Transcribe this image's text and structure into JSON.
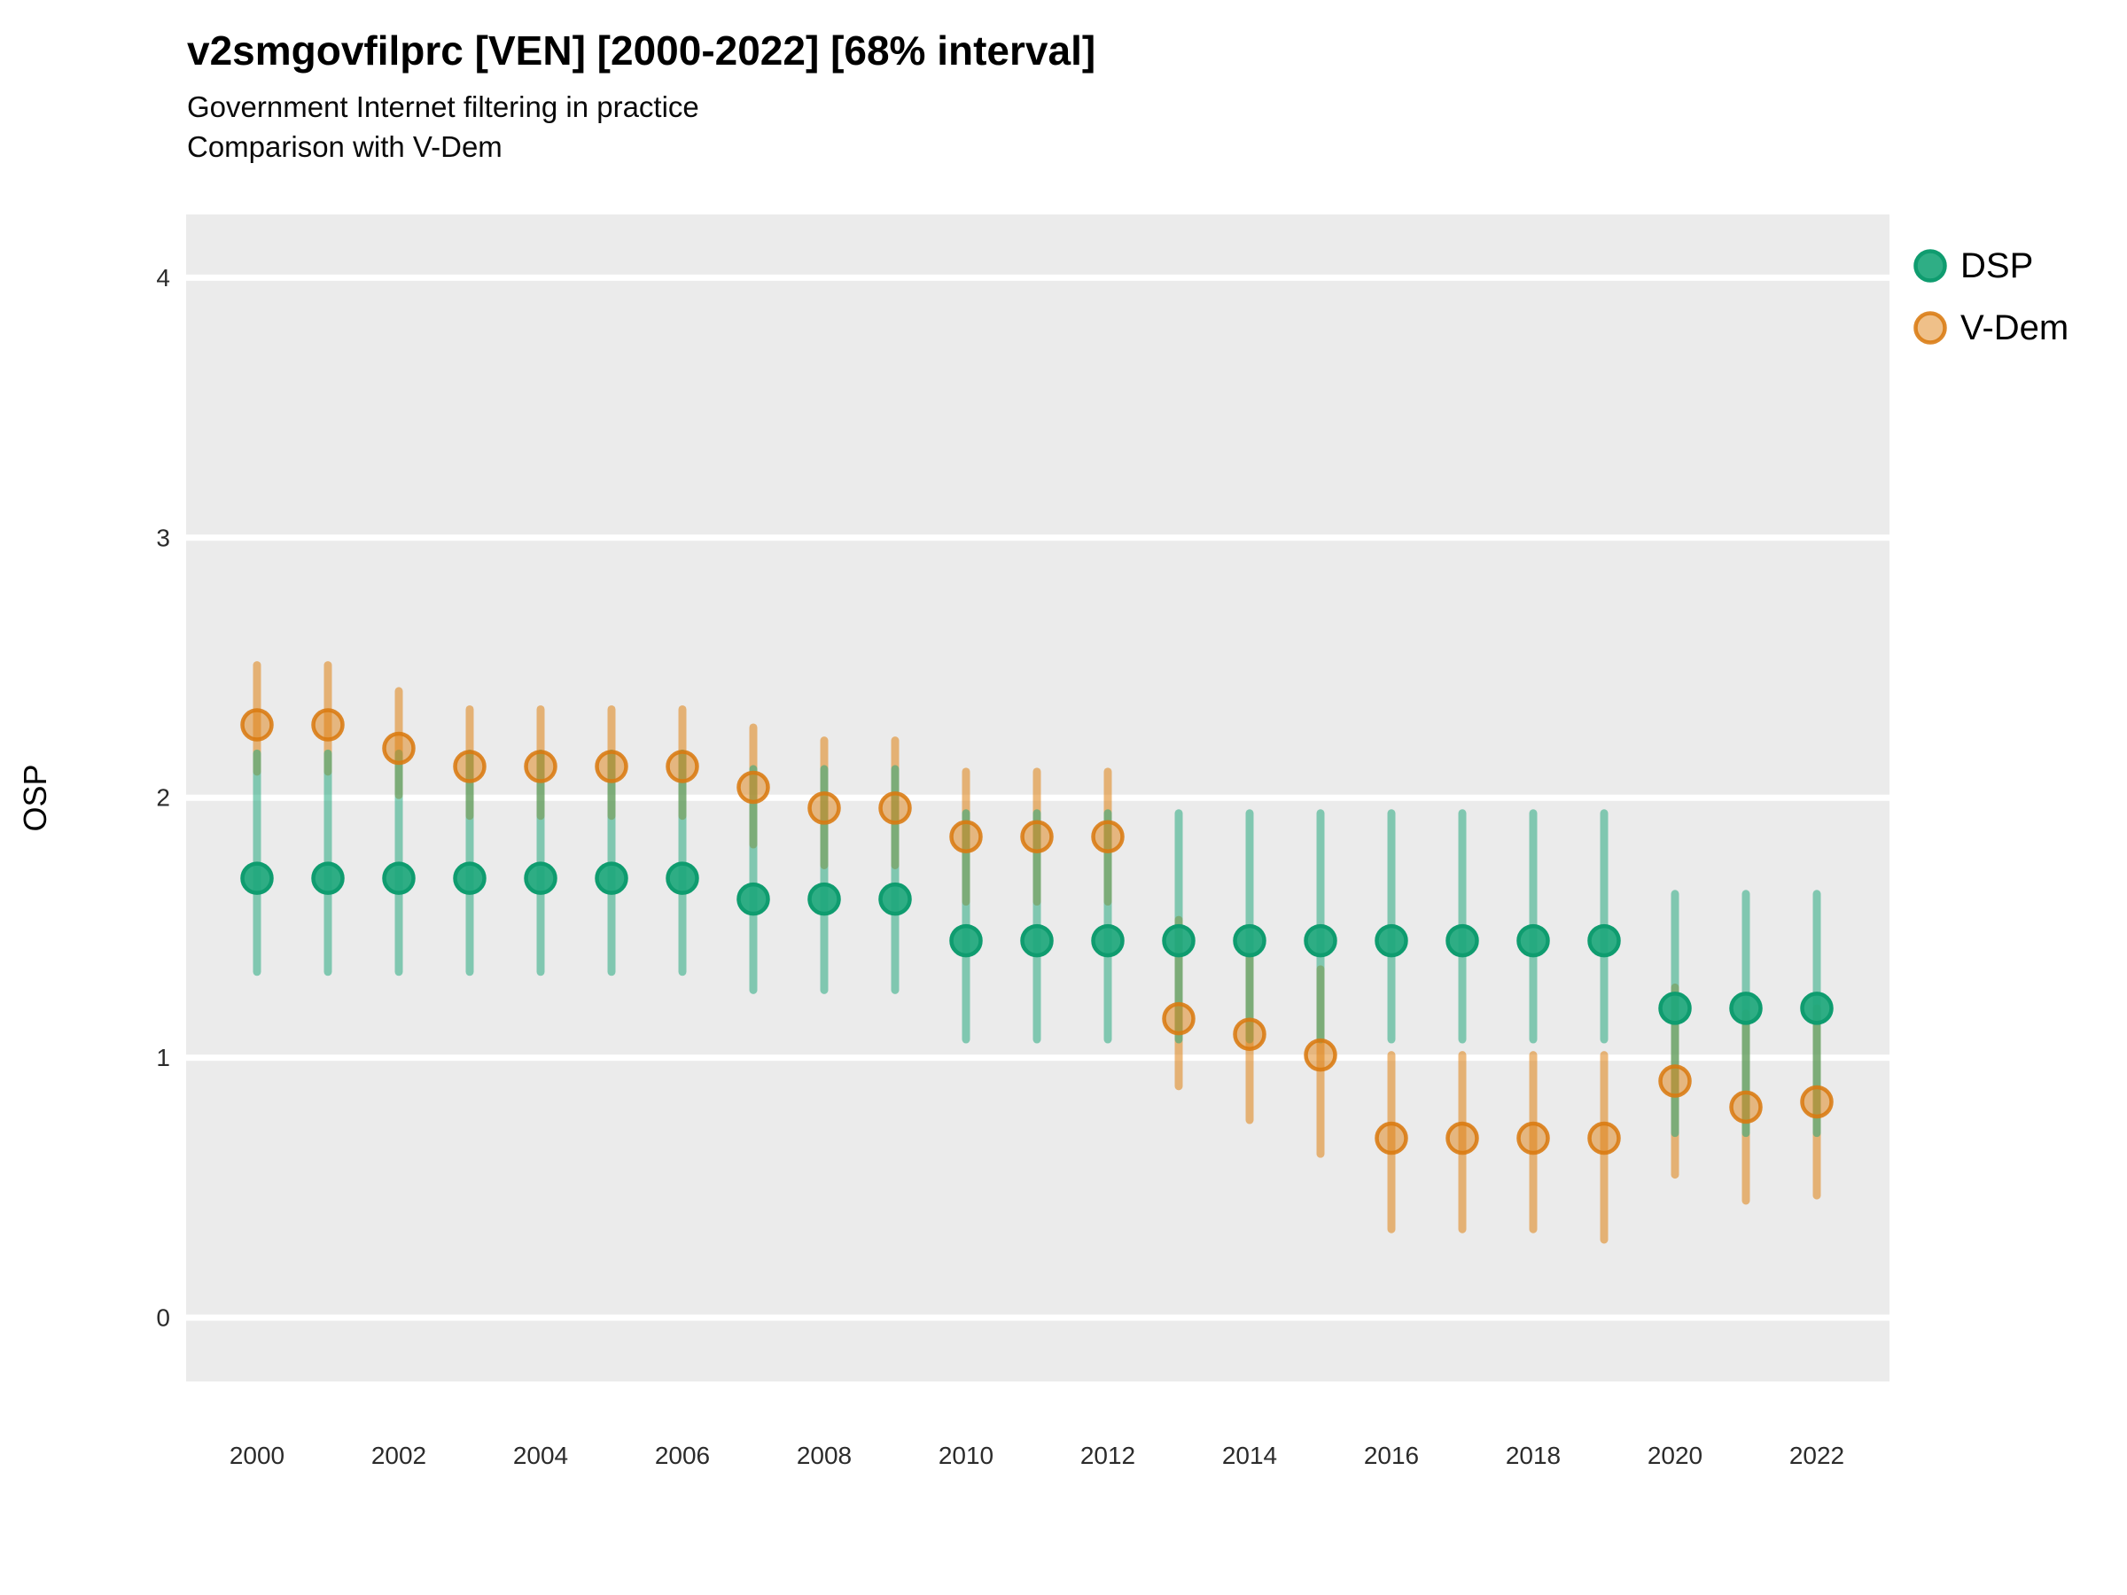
{
  "header": {
    "title": "v2smgovfilprc [VEN] [2000-2022] [68% interval]",
    "subtitle_line1": "Government Internet filtering in practice",
    "subtitle_line2": "Comparison with V-Dem"
  },
  "y_axis": {
    "label": "OSP",
    "ticks": [
      0,
      1,
      2,
      3,
      4
    ]
  },
  "x_axis": {
    "ticks": [
      2000,
      2002,
      2004,
      2006,
      2008,
      2010,
      2012,
      2014,
      2016,
      2018,
      2020,
      2022
    ]
  },
  "legend": {
    "items": [
      {
        "label": "DSP",
        "color": "#1FA87C",
        "stroke": "#0F9C6F"
      },
      {
        "label": "V-Dem",
        "color": "#E08214",
        "stroke": "#D97A10"
      }
    ]
  },
  "colors": {
    "panel_bg": "#EBEBEB",
    "grid": "#FFFFFF",
    "tick_text": "#2b2b2b",
    "dsp": "#1FA87C",
    "vdem": "#E08214"
  },
  "chart_data": {
    "type": "scatter",
    "subtype": "pointrange",
    "interval": "68%",
    "title": "v2smgovfilprc [VEN] [2000-2022] [68% interval]",
    "subtitle": "Government Internet filtering in practice — Comparison with V-Dem",
    "xlabel": "",
    "ylabel": "OSP",
    "ylim": [
      0,
      4
    ],
    "grid": "horizontal-major-only",
    "legend_position": "right-top",
    "x": [
      2000,
      2001,
      2002,
      2003,
      2004,
      2005,
      2006,
      2007,
      2008,
      2009,
      2010,
      2011,
      2012,
      2013,
      2014,
      2015,
      2016,
      2017,
      2018,
      2019,
      2020,
      2021,
      2022
    ],
    "series": [
      {
        "name": "DSP",
        "color": "#1FA87C",
        "stroke_color": "#0F9C6F",
        "values": [
          1.69,
          1.69,
          1.69,
          1.69,
          1.69,
          1.69,
          1.69,
          1.61,
          1.61,
          1.61,
          1.45,
          1.45,
          1.45,
          1.45,
          1.45,
          1.45,
          1.45,
          1.45,
          1.45,
          1.45,
          1.19,
          1.19,
          1.19
        ],
        "lower": [
          1.33,
          1.33,
          1.33,
          1.33,
          1.33,
          1.33,
          1.33,
          1.26,
          1.26,
          1.26,
          1.07,
          1.07,
          1.07,
          1.07,
          1.07,
          1.07,
          1.07,
          1.07,
          1.07,
          1.07,
          0.71,
          0.71,
          0.71
        ],
        "upper": [
          2.17,
          2.17,
          2.17,
          2.17,
          2.17,
          2.17,
          2.17,
          2.11,
          2.11,
          2.11,
          1.94,
          1.94,
          1.94,
          1.94,
          1.94,
          1.94,
          1.94,
          1.94,
          1.94,
          1.94,
          1.63,
          1.63,
          1.63
        ]
      },
      {
        "name": "V-Dem",
        "color": "#E08214",
        "stroke_color": "#D97A10",
        "values": [
          2.28,
          2.28,
          2.19,
          2.12,
          2.12,
          2.12,
          2.12,
          2.04,
          1.96,
          1.96,
          1.85,
          1.85,
          1.85,
          1.15,
          1.09,
          1.01,
          0.69,
          0.69,
          0.69,
          0.69,
          0.91,
          0.81,
          0.83
        ],
        "lower": [
          2.1,
          2.1,
          2.01,
          1.93,
          1.93,
          1.93,
          1.93,
          1.82,
          1.74,
          1.74,
          1.6,
          1.6,
          1.6,
          0.89,
          0.76,
          0.63,
          0.34,
          0.34,
          0.34,
          0.3,
          0.55,
          0.45,
          0.47
        ],
        "upper": [
          2.51,
          2.51,
          2.41,
          2.34,
          2.34,
          2.34,
          2.34,
          2.27,
          2.22,
          2.22,
          2.1,
          2.1,
          2.1,
          1.53,
          1.39,
          1.34,
          1.01,
          1.01,
          1.01,
          1.01,
          1.27,
          1.17,
          1.19
        ]
      }
    ]
  }
}
